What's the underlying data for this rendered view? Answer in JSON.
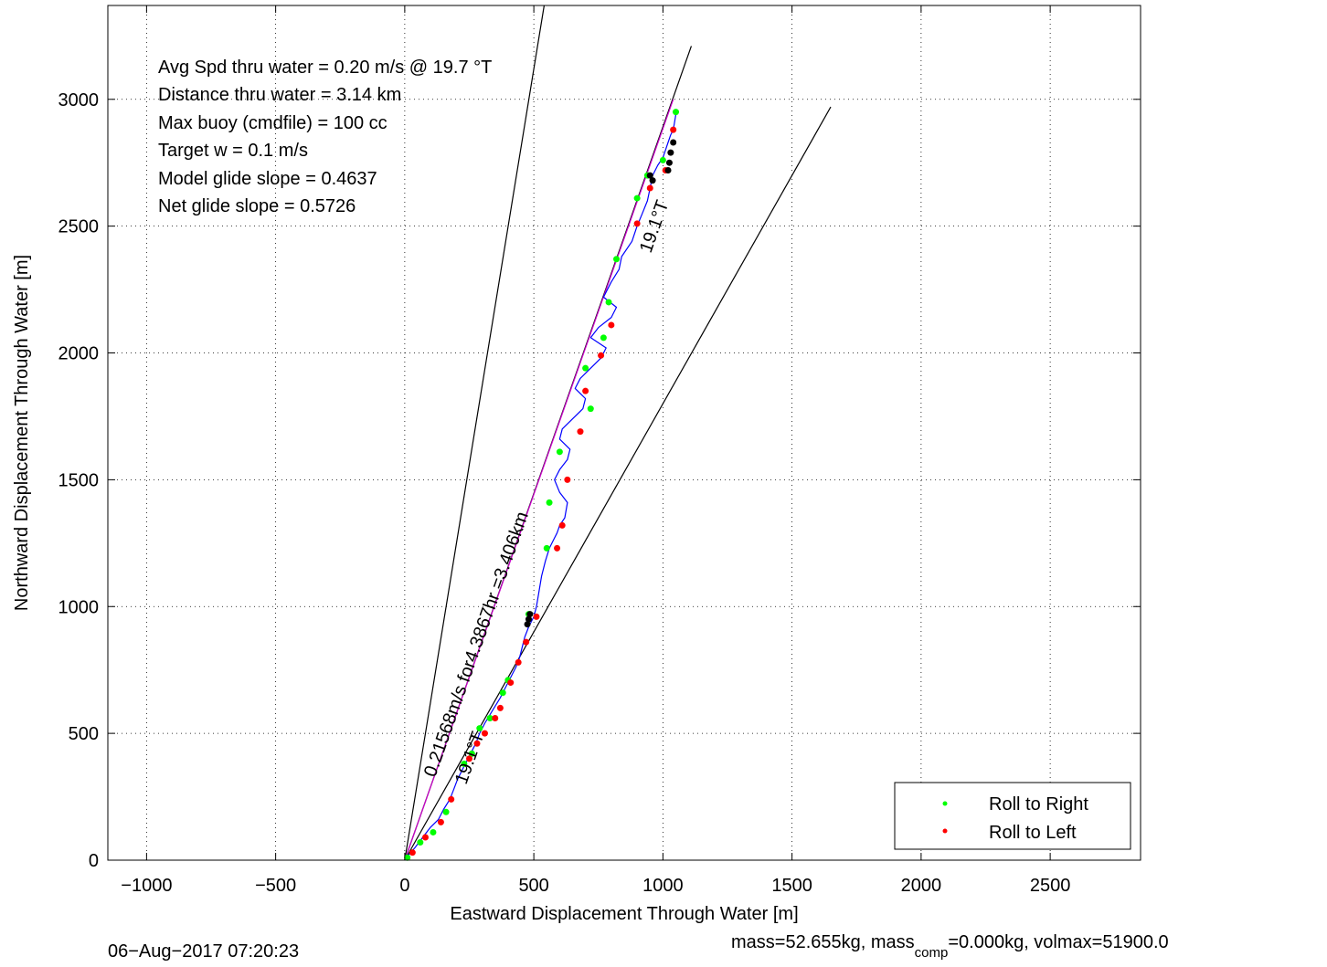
{
  "chart_data": {
    "type": "scatter",
    "xlabel": "Eastward Displacement Through Water [m]",
    "ylabel": "Northward Displacement Through Water [m]",
    "xlim": [
      -1150,
      2850
    ],
    "ylim": [
      0,
      3370
    ],
    "grid": true,
    "x_ticks": [
      -1000,
      -500,
      0,
      500,
      1000,
      1500,
      2000,
      2500
    ],
    "y_ticks": [
      0,
      500,
      1000,
      1500,
      2000,
      2500,
      3000
    ],
    "x_tick_labels": [
      "−1000",
      "−500",
      "0",
      "500",
      "1000",
      "1500",
      "2000",
      "2500"
    ],
    "y_tick_labels": [
      "0",
      "500",
      "1000",
      "1500",
      "2000",
      "2500",
      "3000"
    ],
    "info_lines": [
      "Avg Spd thru water =  0.20 m/s @  19.7    °T",
      "Distance thru water =  3.14 km",
      "Max buoy (cmdfile) = 100 cc",
      "Target w = 0.1 m/s",
      "Model glide slope = 0.4637",
      "Net glide slope = 0.5726"
    ],
    "annotations": {
      "center_line_label": "0.21568m/s for4.3867hr =3.406km",
      "heading_label_top": "19.1°T",
      "heading_label_bottom": "19.1°T"
    },
    "reference_lines": [
      {
        "name": "",
        "color": "#000000",
        "from": [
          0,
          0
        ],
        "to": [
          540,
          3370
        ]
      },
      {
        "name": "",
        "color": "#000000",
        "from": [
          0,
          0
        ],
        "to": [
          1110,
          3210
        ]
      },
      {
        "name": "",
        "color": "#000000",
        "from": [
          0,
          0
        ],
        "to": [
          1650,
          2970
        ]
      },
      {
        "name": "",
        "color": "#cc00cc",
        "from": [
          0,
          0
        ],
        "to": [
          1040,
          3000
        ]
      }
    ],
    "track": {
      "color": "#0000ff",
      "x": [
        0,
        15,
        40,
        70,
        100,
        130,
        150,
        175,
        190,
        205,
        230,
        255,
        275,
        290,
        310,
        340,
        370,
        390,
        410,
        430,
        445,
        455,
        465,
        480,
        500,
        510,
        520,
        530,
        545,
        560,
        575,
        590,
        600,
        620,
        630,
        600,
        580,
        600,
        630,
        640,
        600,
        610,
        650,
        690,
        700,
        660,
        680,
        720,
        760,
        780,
        720,
        750,
        800,
        820,
        770,
        800,
        830,
        840,
        880,
        900,
        920,
        940,
        950,
        960,
        980,
        1000,
        1010,
        1020,
        1030,
        1040,
        1045,
        1050,
        1055
      ],
      "y": [
        0,
        20,
        50,
        90,
        130,
        160,
        200,
        240,
        280,
        320,
        370,
        420,
        460,
        500,
        540,
        590,
        640,
        680,
        720,
        760,
        800,
        840,
        880,
        920,
        960,
        1000,
        1060,
        1120,
        1180,
        1230,
        1260,
        1290,
        1320,
        1350,
        1410,
        1450,
        1500,
        1540,
        1580,
        1620,
        1660,
        1700,
        1740,
        1780,
        1820,
        1860,
        1900,
        1940,
        1980,
        2020,
        2060,
        2100,
        2140,
        2180,
        2220,
        2280,
        2330,
        2380,
        2440,
        2500,
        2550,
        2600,
        2650,
        2700,
        2740,
        2770,
        2800,
        2830,
        2860,
        2880,
        2910,
        2940,
        2960
      ]
    },
    "series": [
      {
        "name": "Roll to Right",
        "color": "#00ff00",
        "x": [
          10,
          60,
          110,
          160,
          230,
          260,
          290,
          380,
          400,
          330,
          480,
          550,
          560,
          600,
          700,
          720,
          770,
          790,
          820,
          900,
          940,
          1000,
          1050
        ],
        "y": [
          10,
          70,
          110,
          190,
          380,
          420,
          520,
          660,
          710,
          560,
          970,
          1230,
          1410,
          1610,
          1940,
          1780,
          2060,
          2200,
          2370,
          2610,
          2700,
          2760,
          2950
        ]
      },
      {
        "name": "Roll to Left",
        "color": "#ff0000",
        "x": [
          30,
          80,
          140,
          180,
          250,
          280,
          310,
          350,
          370,
          410,
          440,
          470,
          510,
          590,
          610,
          630,
          680,
          700,
          760,
          800,
          900,
          950,
          1010,
          1040
        ],
        "y": [
          30,
          90,
          150,
          240,
          400,
          460,
          500,
          560,
          600,
          700,
          780,
          860,
          960,
          1230,
          1320,
          1500,
          1690,
          1850,
          1990,
          2110,
          2510,
          2650,
          2720,
          2880
        ]
      },
      {
        "name": "",
        "color": "#000000",
        "x": [
          475,
          480,
          485,
          950,
          960,
          1020,
          1025,
          1030,
          1040
        ],
        "y": [
          930,
          950,
          970,
          2700,
          2680,
          2720,
          2750,
          2790,
          2830
        ]
      }
    ],
    "legend": {
      "placement": "bottom-right",
      "entries": [
        "Roll to Right",
        "Roll to Left"
      ]
    }
  },
  "footer": {
    "timestamp": "06−Aug−2017 07:20:23",
    "mass_text": "mass=52.655kg, mass",
    "mass_sub": "comp",
    "mass_rest": "=0.000kg, volmax=51900.0"
  }
}
